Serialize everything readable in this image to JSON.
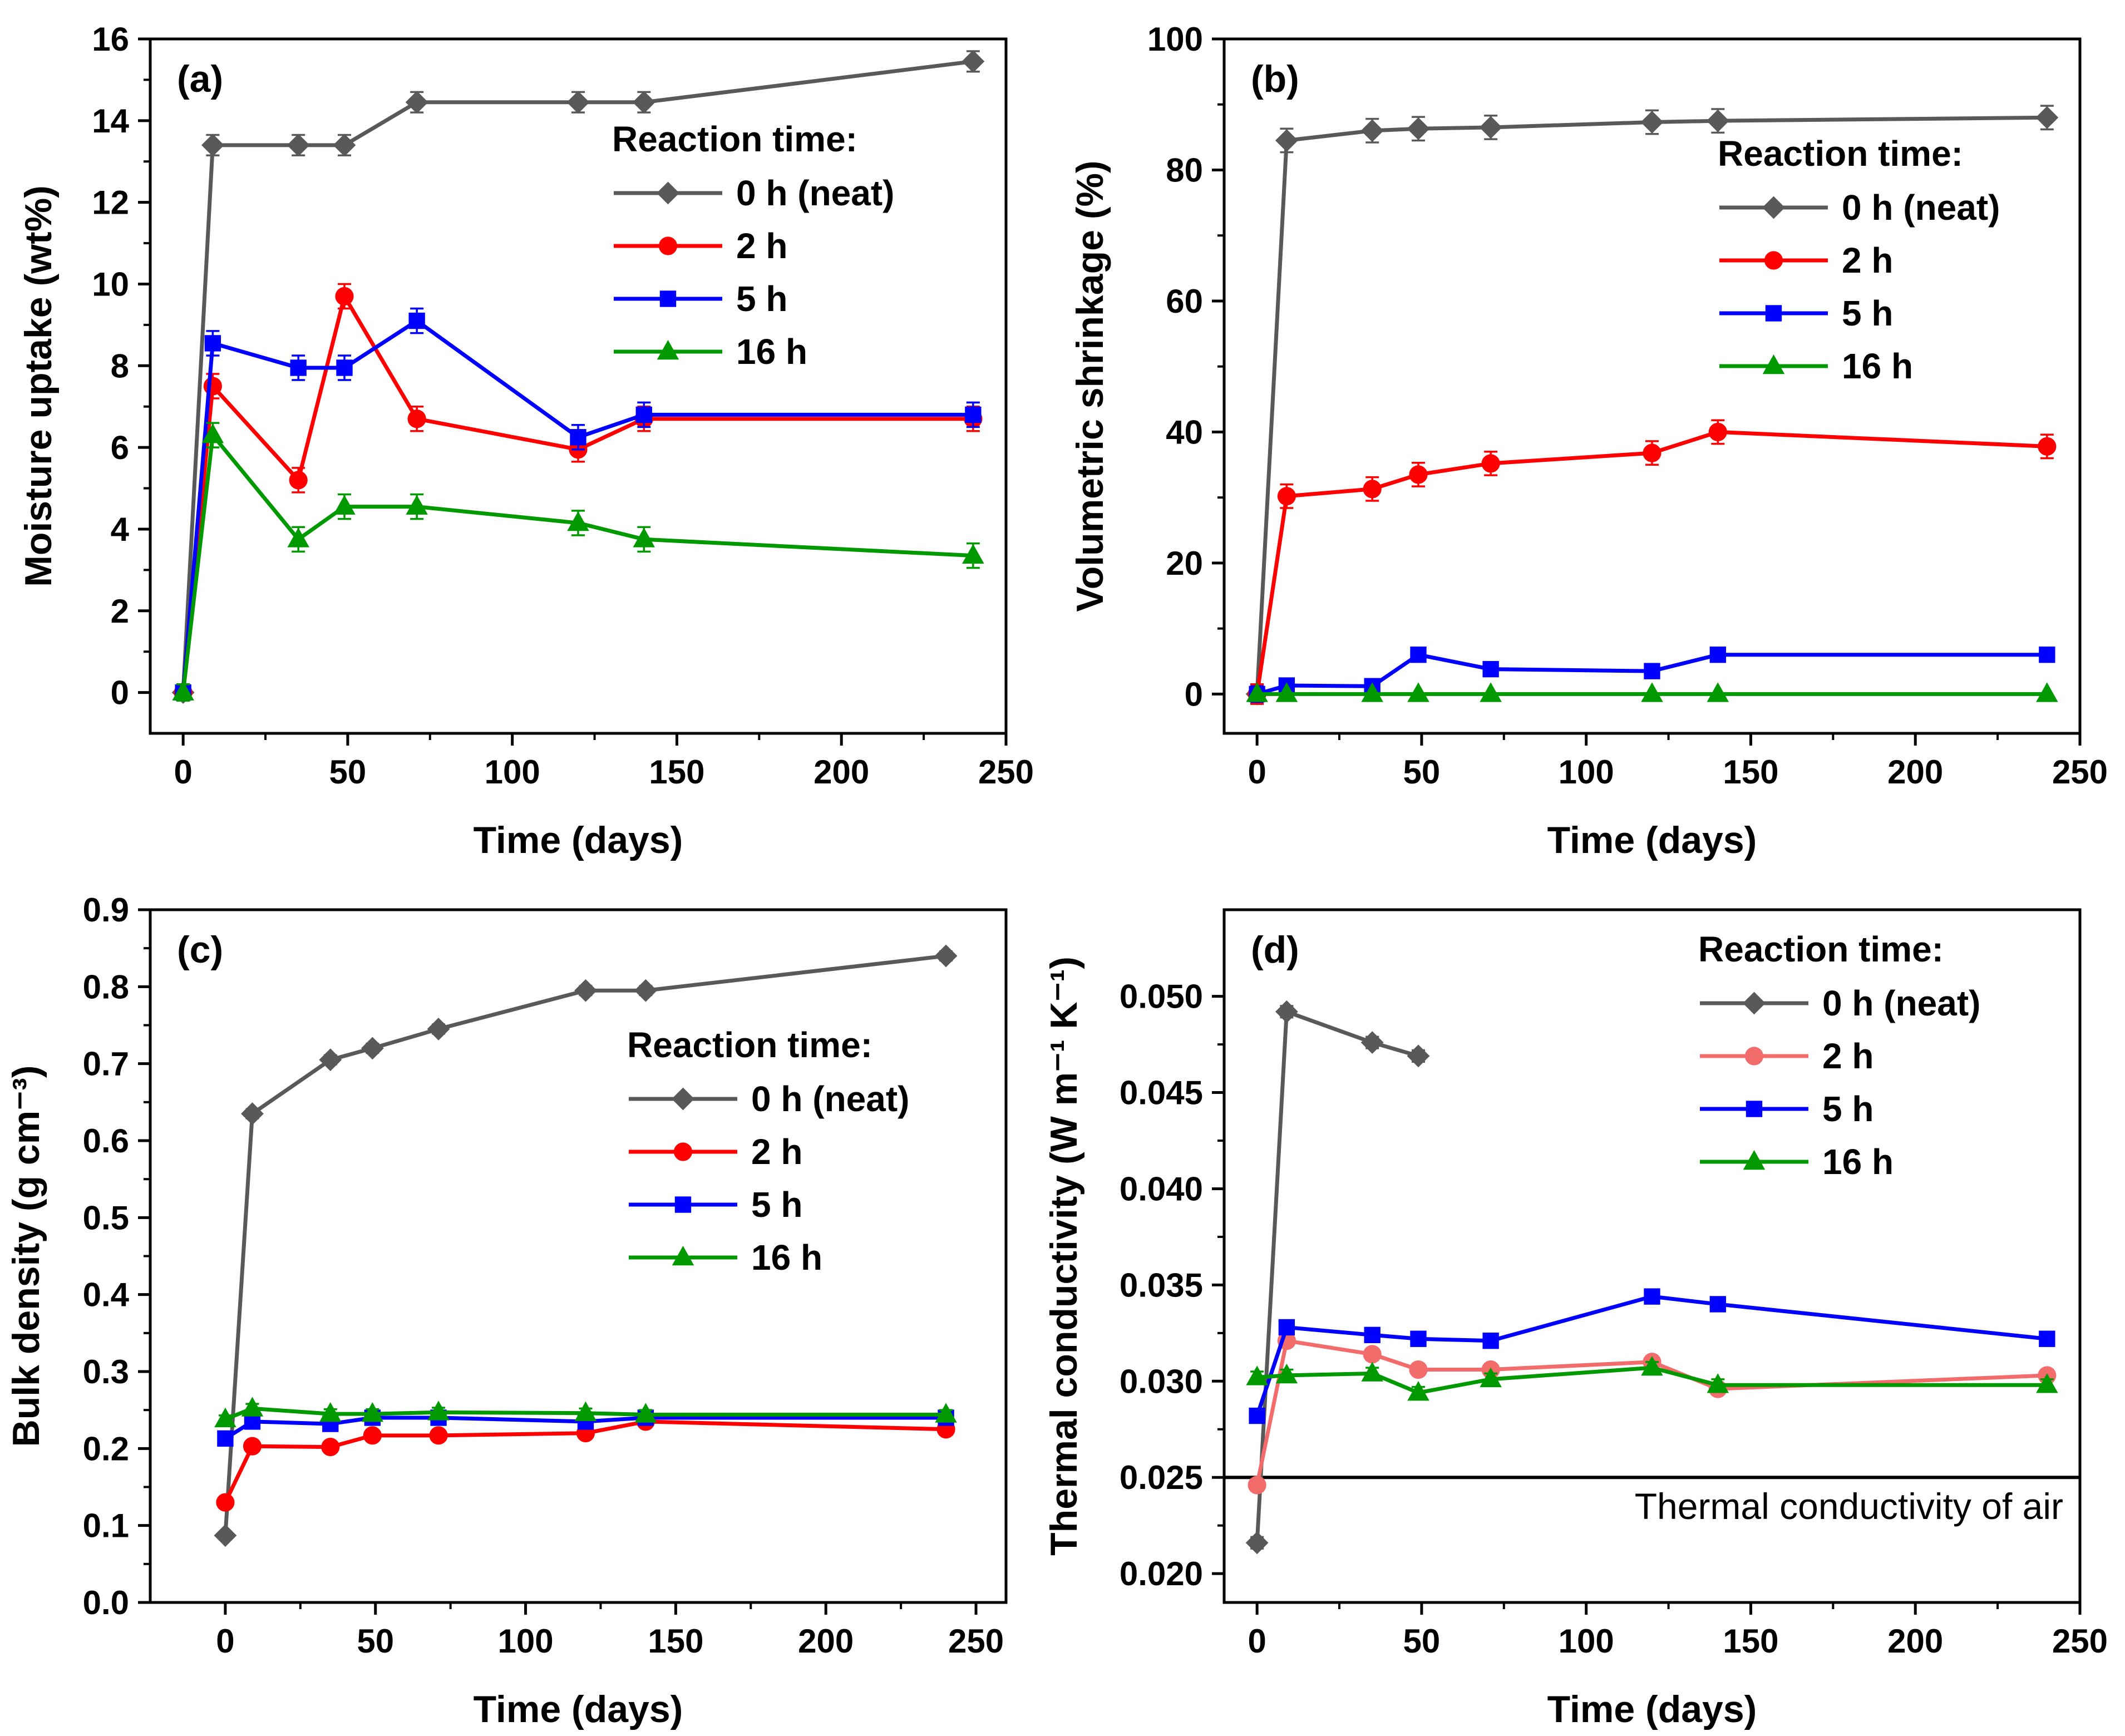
{
  "figure": {
    "id": "moisture-aging-figure"
  },
  "chart_data": [
    {
      "type": "line",
      "panel_label": "(a)",
      "xlabel": "Time (days)",
      "ylabel": "Moisture uptake (wt%)",
      "xlim": [
        -10,
        250
      ],
      "ylim": [
        -1,
        16
      ],
      "xticks": [
        0,
        50,
        100,
        150,
        200,
        250
      ],
      "yticks": [
        0,
        2,
        4,
        6,
        8,
        10,
        12,
        14,
        16
      ],
      "legend": {
        "title": "Reaction time:",
        "position": "upper-right"
      },
      "series": [
        {
          "name": "0 h (neat)",
          "color": "#595959",
          "marker": "diamond",
          "x": [
            0,
            9,
            35,
            49,
            71,
            120,
            140,
            240
          ],
          "y": [
            0,
            13.4,
            13.4,
            13.4,
            14.45,
            14.45,
            14.45,
            15.45
          ],
          "err": [
            0.2,
            0.25,
            0.25,
            0.25,
            0.25,
            0.25,
            0.25,
            0.25
          ]
        },
        {
          "name": "2 h",
          "color": "#ff0000",
          "marker": "circle",
          "x": [
            0,
            9,
            35,
            49,
            71,
            120,
            140,
            240
          ],
          "y": [
            0,
            7.5,
            5.2,
            9.7,
            6.7,
            5.95,
            6.7,
            6.7
          ],
          "err": [
            0.2,
            0.3,
            0.3,
            0.3,
            0.3,
            0.3,
            0.3,
            0.3
          ]
        },
        {
          "name": "5 h",
          "color": "#0000ff",
          "marker": "square",
          "x": [
            0,
            9,
            35,
            49,
            71,
            120,
            140,
            240
          ],
          "y": [
            0,
            8.55,
            7.95,
            7.95,
            9.1,
            6.25,
            6.8,
            6.8
          ],
          "err": [
            0.2,
            0.3,
            0.3,
            0.3,
            0.3,
            0.3,
            0.3,
            0.3
          ]
        },
        {
          "name": "16 h",
          "color": "#009900",
          "marker": "triangle",
          "x": [
            0,
            9,
            35,
            49,
            71,
            120,
            140,
            240
          ],
          "y": [
            0,
            6.3,
            3.75,
            4.55,
            4.55,
            4.15,
            3.75,
            3.35
          ],
          "err": [
            0.2,
            0.3,
            0.3,
            0.3,
            0.3,
            0.3,
            0.3,
            0.3
          ]
        }
      ]
    },
    {
      "type": "line",
      "panel_label": "(b)",
      "xlabel": "Time (days)",
      "ylabel": "Volumetric shrinkage (%)",
      "xlim": [
        -10,
        250
      ],
      "ylim": [
        -6,
        100
      ],
      "xticks": [
        0,
        50,
        100,
        150,
        200,
        250
      ],
      "yticks": [
        0,
        20,
        40,
        60,
        80,
        100
      ],
      "legend": {
        "title": "Reaction time:",
        "position": "upper-right"
      },
      "series": [
        {
          "name": "0 h (neat)",
          "color": "#595959",
          "marker": "diamond",
          "x": [
            0,
            9,
            35,
            49,
            71,
            120,
            140,
            240
          ],
          "y": [
            0,
            84.5,
            86,
            86.3,
            86.5,
            87.3,
            87.5,
            88
          ],
          "err": [
            1.5,
            1.8,
            1.8,
            1.8,
            1.8,
            1.8,
            1.8,
            1.8
          ]
        },
        {
          "name": "2 h",
          "color": "#ff0000",
          "marker": "circle",
          "x": [
            0,
            9,
            35,
            49,
            71,
            120,
            140,
            240
          ],
          "y": [
            0,
            30.2,
            31.3,
            33.5,
            35.2,
            36.8,
            40,
            37.8
          ],
          "err": [
            1.5,
            1.8,
            1.8,
            1.8,
            1.8,
            1.8,
            1.8,
            1.8
          ]
        },
        {
          "name": "5 h",
          "color": "#0000ff",
          "marker": "square",
          "x": [
            0,
            9,
            35,
            49,
            71,
            120,
            140,
            240
          ],
          "y": [
            0,
            1.3,
            1.2,
            6,
            3.8,
            3.5,
            6,
            6
          ],
          "err": [
            1.2,
            0.5,
            0.5,
            0.5,
            0.5,
            0.5,
            0.5,
            0.5
          ]
        },
        {
          "name": "16 h",
          "color": "#009900",
          "marker": "triangle",
          "x": [
            0,
            9,
            35,
            49,
            71,
            120,
            140,
            240
          ],
          "y": [
            0,
            0,
            0,
            0,
            0,
            0,
            0,
            0
          ],
          "err": [
            0,
            0,
            0,
            0,
            0,
            0,
            0,
            0
          ]
        }
      ]
    },
    {
      "type": "line",
      "panel_label": "(c)",
      "xlabel": "Time (days)",
      "ylabel": "Bulk density (g cm⁻³)",
      "xlim": [
        -25,
        260
      ],
      "ylim": [
        0,
        0.9
      ],
      "xticks": [
        0,
        50,
        100,
        150,
        200,
        250
      ],
      "yticks": [
        0.0,
        0.1,
        0.2,
        0.3,
        0.4,
        0.5,
        0.6,
        0.7,
        0.8,
        0.9
      ],
      "yticklabels": [
        "0.0",
        "0.1",
        "0.2",
        "0.3",
        "0.4",
        "0.5",
        "0.6",
        "0.7",
        "0.8",
        "0.9"
      ],
      "legend": {
        "title": "Reaction time:",
        "position": "right-middle"
      },
      "series": [
        {
          "name": "0 h (neat)",
          "color": "#595959",
          "marker": "diamond",
          "x": [
            0,
            9,
            35,
            49,
            71,
            120,
            140,
            240
          ],
          "y": [
            0.087,
            0.635,
            0.705,
            0.72,
            0.745,
            0.795,
            0.795,
            0.84
          ],
          "err": [
            0.005,
            0.006,
            0.006,
            0.006,
            0.006,
            0.006,
            0.006,
            0.006
          ]
        },
        {
          "name": "2 h",
          "color": "#ff0000",
          "marker": "circle",
          "x": [
            0,
            9,
            35,
            49,
            71,
            120,
            140,
            240
          ],
          "y": [
            0.13,
            0.203,
            0.202,
            0.217,
            0.217,
            0.22,
            0.235,
            0.225
          ],
          "err": [
            0.005,
            0.006,
            0.006,
            0.006,
            0.006,
            0.006,
            0.006,
            0.006
          ]
        },
        {
          "name": "5 h",
          "color": "#0000ff",
          "marker": "square",
          "x": [
            0,
            9,
            35,
            49,
            71,
            120,
            140,
            240
          ],
          "y": [
            0.213,
            0.235,
            0.232,
            0.24,
            0.24,
            0.235,
            0.24,
            0.24
          ],
          "err": [
            0.005,
            0.006,
            0.006,
            0.006,
            0.006,
            0.006,
            0.006,
            0.006
          ]
        },
        {
          "name": "16 h",
          "color": "#009900",
          "marker": "triangle",
          "x": [
            0,
            9,
            35,
            49,
            71,
            120,
            140,
            240
          ],
          "y": [
            0.238,
            0.252,
            0.245,
            0.245,
            0.247,
            0.246,
            0.244,
            0.244
          ],
          "err": [
            0.005,
            0.006,
            0.006,
            0.006,
            0.006,
            0.006,
            0.006,
            0.006
          ]
        }
      ]
    },
    {
      "type": "line",
      "panel_label": "(d)",
      "xlabel": "Time (days)",
      "ylabel": "Thermal conductivity (W m⁻¹ K⁻¹)",
      "xlim": [
        -10,
        250
      ],
      "ylim": [
        0.0185,
        0.0545
      ],
      "xticks": [
        0,
        50,
        100,
        150,
        200,
        250
      ],
      "yticks": [
        0.02,
        0.025,
        0.03,
        0.035,
        0.04,
        0.045,
        0.05
      ],
      "yticklabels": [
        "0.020",
        "0.025",
        "0.030",
        "0.035",
        "0.040",
        "0.045",
        "0.050"
      ],
      "reference_line": {
        "y": 0.025,
        "label": "Thermal conductivity of air",
        "color": "#000000"
      },
      "legend": {
        "title": "Reaction time:",
        "position": "upper-right"
      },
      "series": [
        {
          "name": "0 h (neat)",
          "color": "#595959",
          "marker": "diamond",
          "x": [
            0,
            9,
            35,
            49
          ],
          "y": [
            0.0216,
            0.0492,
            0.0476,
            0.0469
          ],
          "err": [
            0.0003,
            0.0003,
            0.0003,
            0.0003
          ]
        },
        {
          "name": "2 h",
          "color": "#f26c6c",
          "marker": "circle",
          "x": [
            0,
            9,
            35,
            49,
            71,
            120,
            140,
            240
          ],
          "y": [
            0.0246,
            0.0321,
            0.0314,
            0.0306,
            0.0306,
            0.031,
            0.0296,
            0.0303
          ],
          "err": [
            0.0003,
            0.0003,
            0.0003,
            0.0003,
            0.0003,
            0.0003,
            0.0003,
            0.0003
          ]
        },
        {
          "name": "5 h",
          "color": "#0000ff",
          "marker": "square",
          "x": [
            0,
            9,
            35,
            49,
            71,
            120,
            140,
            240
          ],
          "y": [
            0.0282,
            0.0328,
            0.0324,
            0.0322,
            0.0321,
            0.0344,
            0.034,
            0.0322
          ],
          "err": [
            0.0003,
            0.0003,
            0.0003,
            0.0003,
            0.0003,
            0.0003,
            0.0003,
            0.0003
          ]
        },
        {
          "name": "16 h",
          "color": "#009900",
          "marker": "triangle",
          "x": [
            0,
            9,
            35,
            49,
            71,
            120,
            140,
            240
          ],
          "y": [
            0.0302,
            0.0303,
            0.0304,
            0.0294,
            0.0301,
            0.0307,
            0.0298,
            0.0298
          ],
          "err": [
            0.0003,
            0.0003,
            0.0003,
            0.0003,
            0.0003,
            0.0003,
            0.0003,
            0.0003
          ]
        }
      ]
    }
  ]
}
